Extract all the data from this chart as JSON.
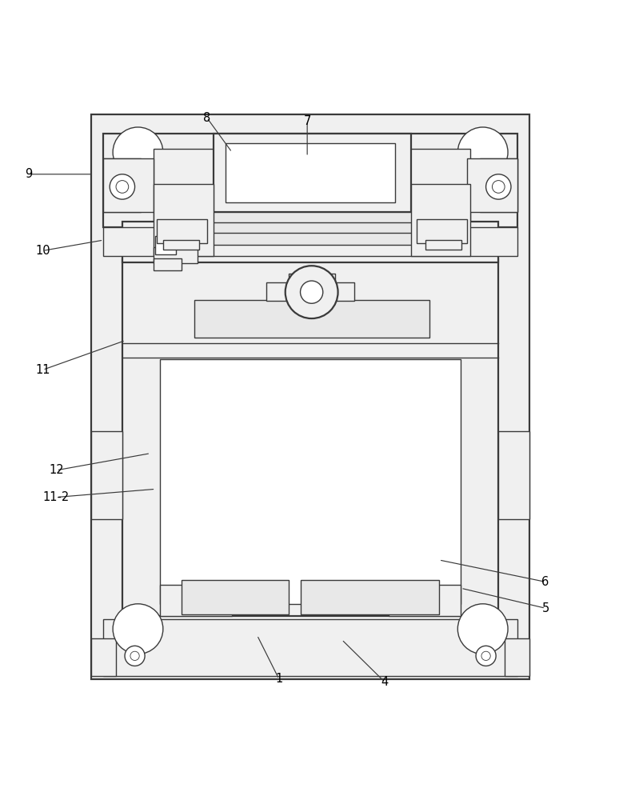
{
  "bg_color": "#ffffff",
  "lc": "#3a3a3a",
  "lw": 1.0,
  "lw2": 1.6,
  "fig_w": 7.84,
  "fig_h": 10.0,
  "annotations": {
    "1": {
      "lp": [
        0.445,
        0.055
      ],
      "ep": [
        0.41,
        0.125
      ]
    },
    "4": {
      "lp": [
        0.614,
        0.05
      ],
      "ep": [
        0.545,
        0.118
      ]
    },
    "5": {
      "lp": [
        0.87,
        0.168
      ],
      "ep": [
        0.735,
        0.2
      ]
    },
    "6": {
      "lp": [
        0.87,
        0.21
      ],
      "ep": [
        0.7,
        0.245
      ]
    },
    "11-2": {
      "lp": [
        0.09,
        0.345
      ],
      "ep": [
        0.248,
        0.358
      ]
    },
    "12": {
      "lp": [
        0.09,
        0.388
      ],
      "ep": [
        0.24,
        0.415
      ]
    },
    "11": {
      "lp": [
        0.068,
        0.548
      ],
      "ep": [
        0.2,
        0.595
      ]
    },
    "10": {
      "lp": [
        0.068,
        0.738
      ],
      "ep": [
        0.165,
        0.755
      ]
    },
    "9": {
      "lp": [
        0.045,
        0.86
      ],
      "ep": [
        0.148,
        0.86
      ]
    },
    "8": {
      "lp": [
        0.33,
        0.95
      ],
      "ep": [
        0.37,
        0.895
      ]
    },
    "7": {
      "lp": [
        0.49,
        0.945
      ],
      "ep": [
        0.49,
        0.888
      ]
    }
  }
}
